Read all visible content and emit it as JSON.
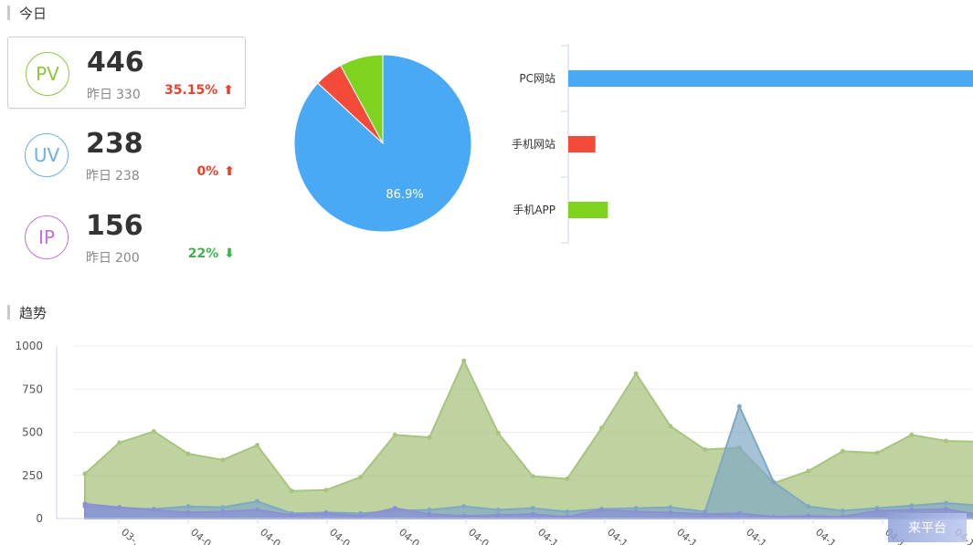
{
  "today": {
    "title": "今日"
  },
  "trend": {
    "title": "趋势"
  },
  "stats": [
    {
      "key": "PV",
      "value": "446",
      "yesterday_label": "昨日",
      "yesterday_value": "330",
      "change": "35.15%",
      "direction": "up",
      "circle_color": "#8dc63f",
      "change_color": "#e8412c"
    },
    {
      "key": "UV",
      "value": "238",
      "yesterday_label": "昨日",
      "yesterday_value": "238",
      "change": "0%",
      "direction": "up",
      "circle_color": "#6ab0e6",
      "change_color": "#e8412c"
    },
    {
      "key": "IP",
      "value": "156",
      "yesterday_label": "昨日",
      "yesterday_value": "200",
      "change": "22%",
      "direction": "down",
      "circle_color": "#c76fe0",
      "change_color": "#3cb44b"
    }
  ],
  "colors": {
    "blue": "#4aa9f5",
    "red": "#f44a3a",
    "green": "#7ed320"
  },
  "chart_data": [
    {
      "type": "pie",
      "slices": [
        {
          "value": 86.9,
          "color": "#4aa9f5",
          "label": "86.9%"
        },
        {
          "value": 5.2,
          "color": "#f44a3a",
          "label": ""
        },
        {
          "value": 7.9,
          "color": "#7ed320",
          "label": ""
        }
      ]
    },
    {
      "type": "bar",
      "orientation": "horizontal",
      "categories": [
        "PC网站",
        "手机网站",
        "手机APP"
      ],
      "values": [
        388,
        26,
        38
      ],
      "colors": [
        "#4aa9f5",
        "#f44a3a",
        "#7ed320"
      ],
      "xlim": [
        0,
        388
      ]
    },
    {
      "type": "area",
      "ylim": [
        0,
        1000
      ],
      "yticks": [
        "0",
        "250",
        "500",
        "750",
        "1000"
      ],
      "xtick_labels": [
        "03-…",
        "04-0…",
        "04-0…",
        "04-0…",
        "04-0…",
        "04-0…",
        "04-1…",
        "04-1…",
        "04-1…",
        "04-1…",
        "04-1…",
        "04-1…",
        "04-1…",
        "04-1…"
      ],
      "series": [
        {
          "color": "#a8c47f",
          "values": [
            260,
            440,
            505,
            375,
            340,
            425,
            160,
            165,
            240,
            485,
            470,
            915,
            495,
            245,
            230,
            525,
            840,
            535,
            400,
            410,
            205,
            275,
            390,
            380,
            485,
            450,
            445
          ]
        },
        {
          "color": "#7fa8c4",
          "values": [
            70,
            60,
            55,
            70,
            65,
            100,
            30,
            35,
            30,
            45,
            50,
            70,
            50,
            60,
            40,
            55,
            60,
            65,
            40,
            650,
            210,
            70,
            45,
            60,
            75,
            90,
            75
          ]
        },
        {
          "color": "#8a8fd6",
          "values": [
            85,
            65,
            50,
            35,
            40,
            50,
            20,
            30,
            15,
            60,
            25,
            15,
            20,
            25,
            10,
            50,
            40,
            35,
            25,
            30,
            10,
            15,
            10,
            45,
            50,
            55,
            20
          ]
        }
      ]
    }
  ],
  "watermark": "来平台"
}
